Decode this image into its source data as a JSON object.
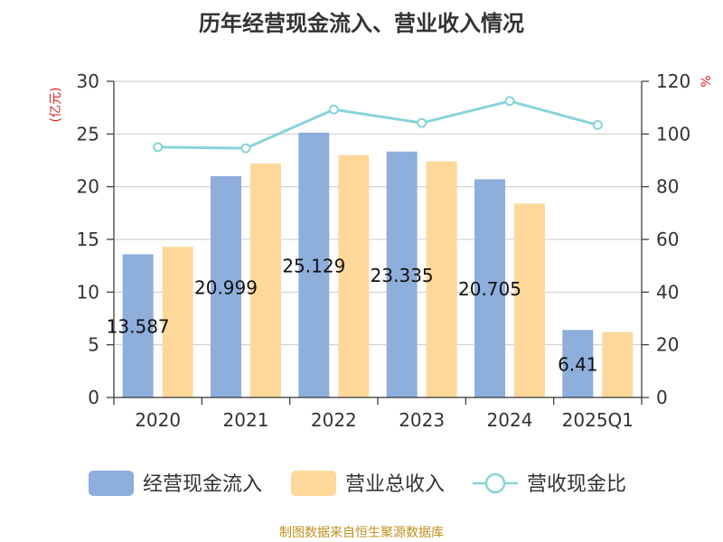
{
  "chart_data": {
    "type": "bar",
    "title": "历年经营现金流入、营业收入情况",
    "categories": [
      "2020",
      "2021",
      "2022",
      "2023",
      "2024",
      "2025Q1"
    ],
    "series": [
      {
        "name": "经营现金流入",
        "type": "bar",
        "axis": "left",
        "color": "#8eaedc",
        "values": [
          13.587,
          20.999,
          25.129,
          23.335,
          20.705,
          6.41
        ]
      },
      {
        "name": "营业总收入",
        "type": "bar",
        "axis": "left",
        "color": "#fdd89a",
        "values": [
          14.3,
          22.2,
          23.0,
          22.4,
          18.4,
          6.2
        ]
      },
      {
        "name": "营收现金比",
        "type": "line",
        "axis": "right",
        "color": "#88d4d8",
        "values": [
          95,
          94.6,
          109.3,
          104.2,
          112.5,
          103.4
        ]
      }
    ],
    "data_labels": [
      "13.587",
      "20.999",
      "25.129",
      "23.335",
      "20.705",
      "6.41"
    ],
    "y_left": {
      "label": "(亿元)",
      "min": 0,
      "max": 30,
      "ticks": [
        0,
        5,
        10,
        15,
        20,
        25,
        30
      ]
    },
    "y_right": {
      "label": "%",
      "min": 0,
      "max": 120,
      "ticks": [
        0,
        20,
        40,
        60,
        80,
        100,
        120
      ]
    },
    "grid": true,
    "legend_position": "bottom"
  },
  "source": "制图数据来自恒生聚源数据库"
}
